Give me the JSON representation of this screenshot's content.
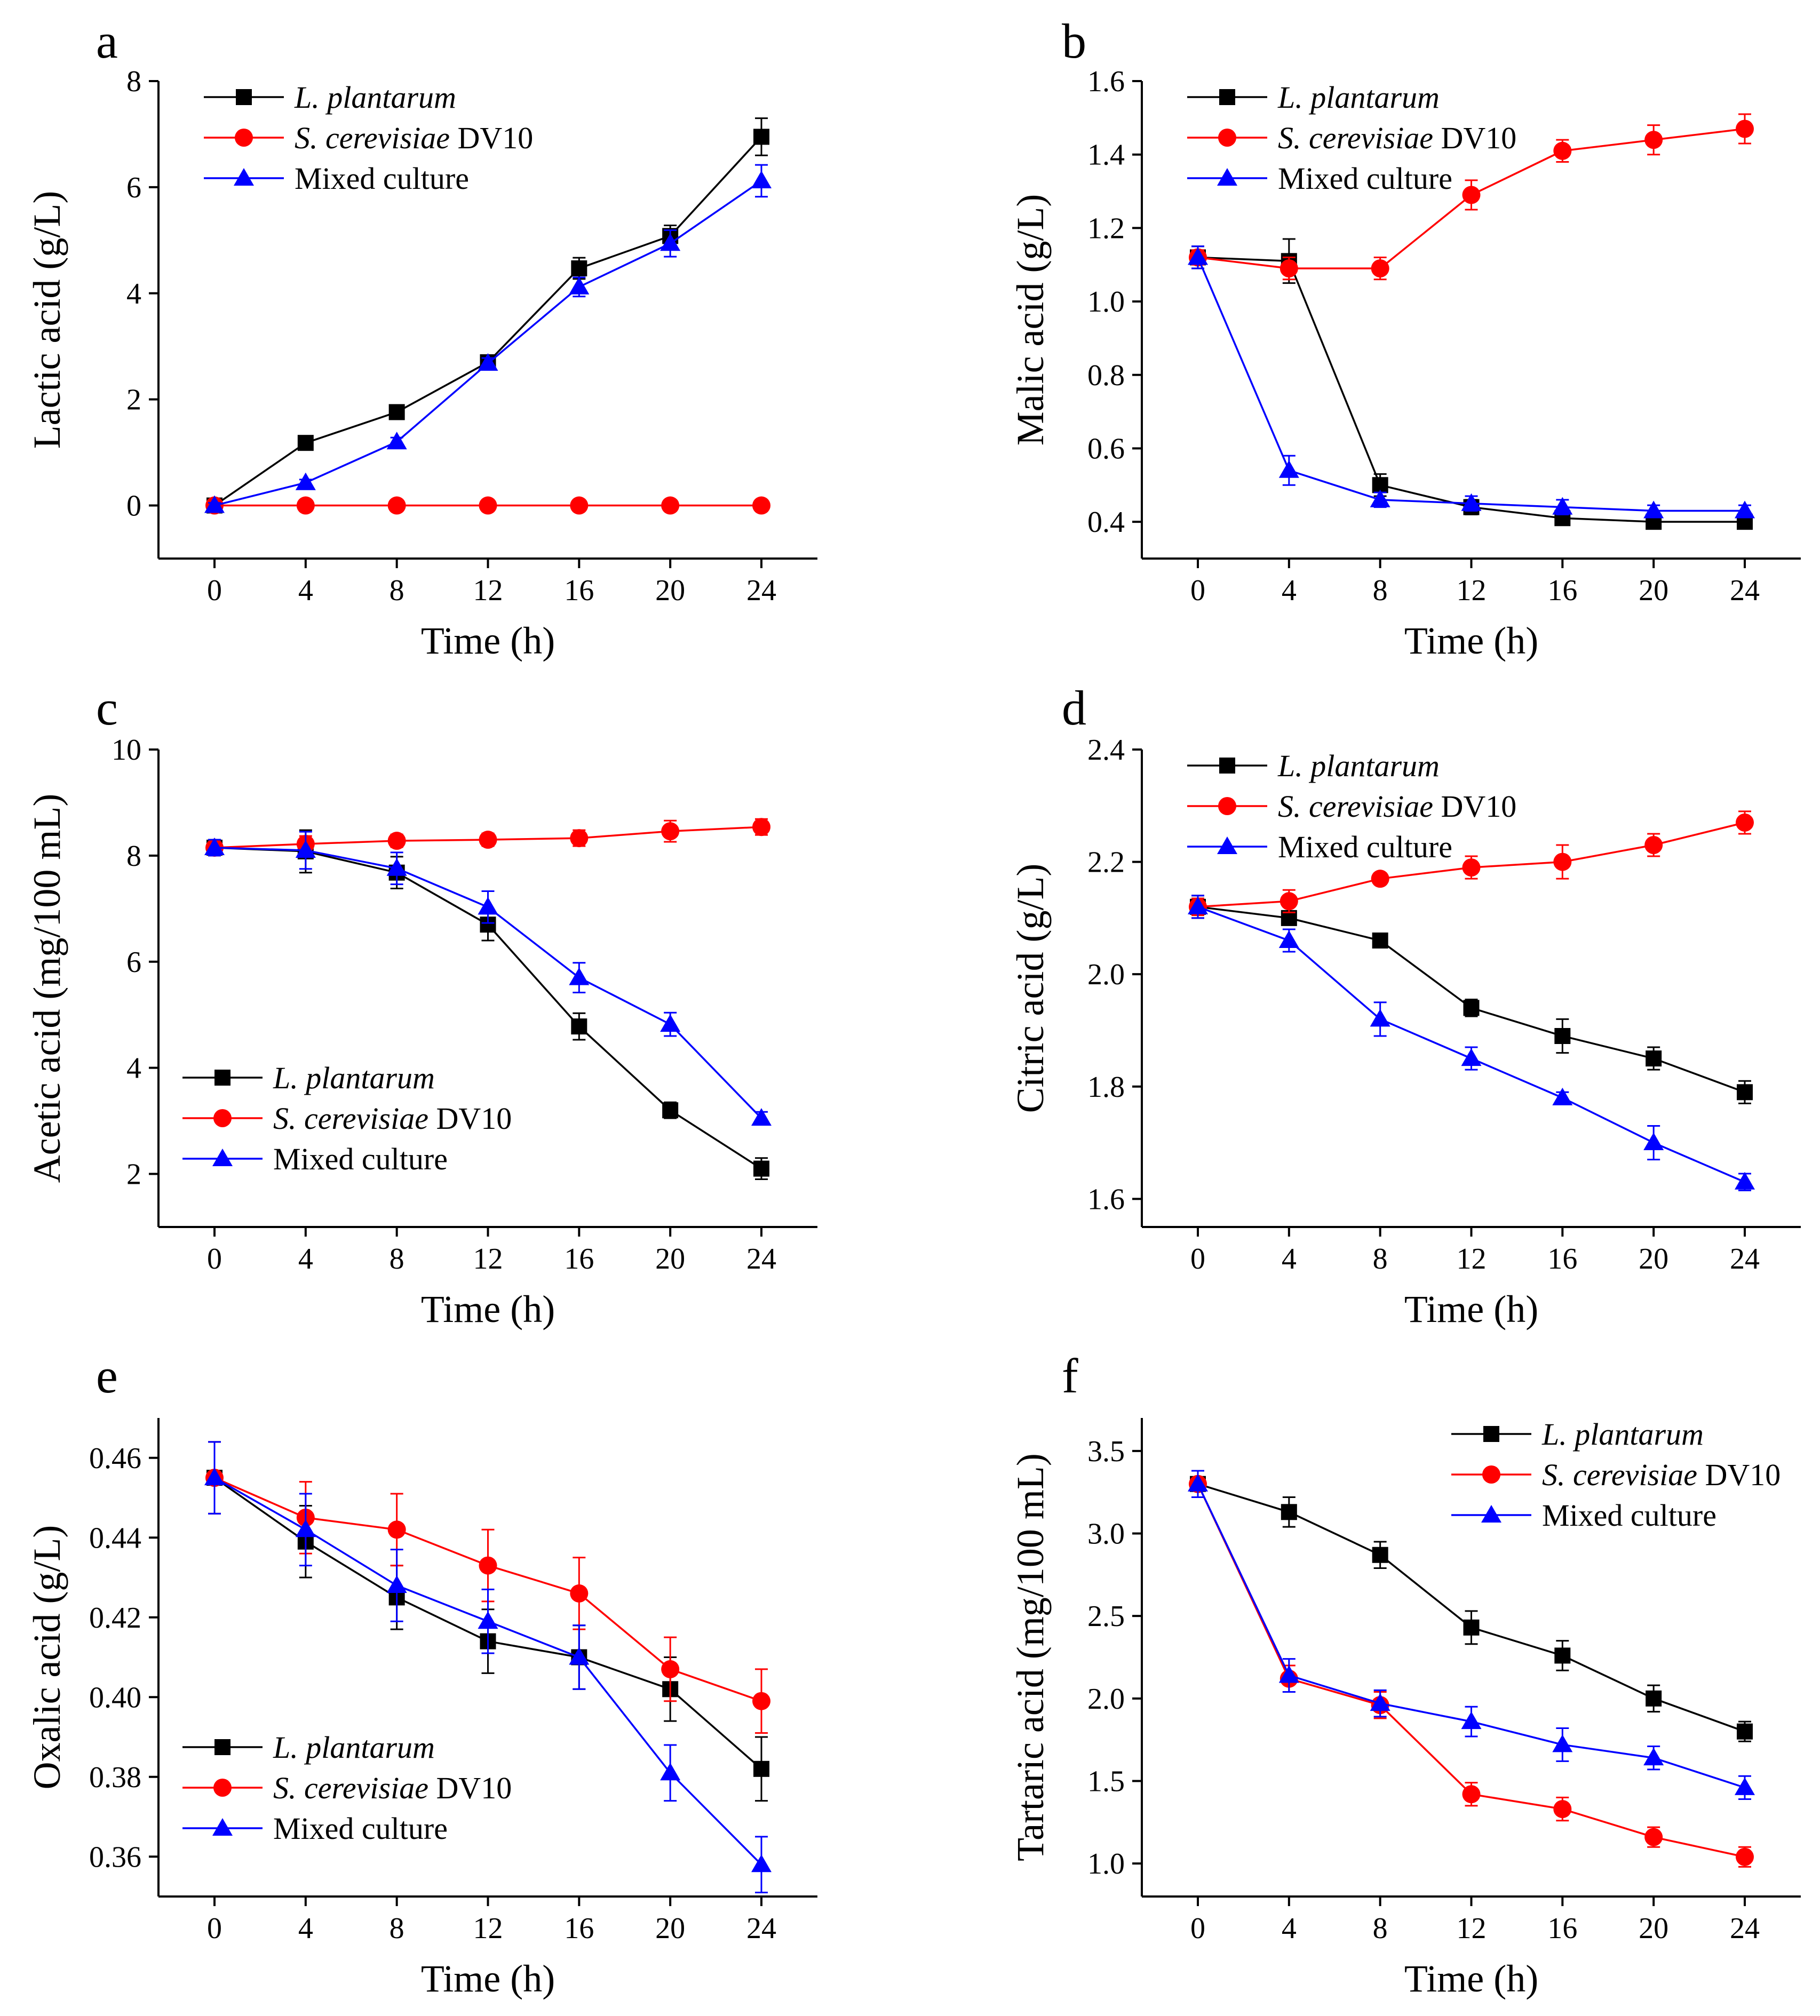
{
  "figure": {
    "x_times": [
      0,
      4,
      8,
      12,
      16,
      20,
      24
    ],
    "xlabel": "Time (h)",
    "series_colors": {
      "lp": "#000000",
      "sc": "#ff0000",
      "mix": "#0000ff"
    }
  },
  "chart_data": [
    {
      "panel": "a",
      "type": "line",
      "ylabel": "Lactic acid (g/L)",
      "ylim": [
        -1,
        8
      ],
      "yticks": [
        0,
        2,
        4,
        6,
        8
      ],
      "ytick_labels": [
        "0",
        "2",
        "4",
        "6",
        "8"
      ],
      "legend_pos": "top-left",
      "series": [
        {
          "key": "lp",
          "name": "L. plantarum",
          "italic": "L. plantarum",
          "suffix": "",
          "marker": "square",
          "values": [
            0,
            1.18,
            1.76,
            2.7,
            4.47,
            5.08,
            6.95
          ],
          "errors": [
            0.05,
            0.06,
            0.07,
            0.1,
            0.2,
            0.2,
            0.35
          ]
        },
        {
          "key": "sc",
          "name": "S. cerevisiae DV10",
          "italic": "S. cerevisiae",
          "suffix": " DV10",
          "marker": "circle",
          "values": [
            0,
            0,
            0,
            0,
            0,
            0,
            0
          ],
          "errors": [
            0,
            0,
            0,
            0,
            0,
            0,
            0
          ]
        },
        {
          "key": "mix",
          "name": "Mixed culture",
          "italic": "",
          "suffix": "Mixed culture",
          "marker": "triangle",
          "values": [
            0,
            0.43,
            1.2,
            2.68,
            4.12,
            4.94,
            6.12
          ],
          "errors": [
            0.05,
            0.06,
            0.08,
            0.1,
            0.18,
            0.25,
            0.3
          ]
        }
      ]
    },
    {
      "panel": "b",
      "type": "line",
      "ylabel": "Malic acid (g/L)",
      "ylim": [
        0.3,
        1.6
      ],
      "yticks": [
        0.4,
        0.6,
        0.8,
        1.0,
        1.2,
        1.4,
        1.6
      ],
      "ytick_labels": [
        "0.4",
        "0.6",
        "0.8",
        "1.0",
        "1.2",
        "1.4",
        "1.6"
      ],
      "legend_pos": "top-left",
      "series": [
        {
          "key": "lp",
          "name": "L. plantarum",
          "italic": "L. plantarum",
          "suffix": "",
          "marker": "square",
          "values": [
            1.12,
            1.11,
            0.5,
            0.44,
            0.41,
            0.4,
            0.4
          ],
          "errors": [
            0.03,
            0.06,
            0.03,
            0.02,
            0.015,
            0.015,
            0.015
          ]
        },
        {
          "key": "sc",
          "name": "S. cerevisiae DV10",
          "italic": "S. cerevisiae",
          "suffix": " DV10",
          "marker": "circle",
          "values": [
            1.12,
            1.09,
            1.09,
            1.29,
            1.41,
            1.44,
            1.47
          ],
          "errors": [
            0.02,
            0.03,
            0.03,
            0.04,
            0.03,
            0.04,
            0.04
          ]
        },
        {
          "key": "mix",
          "name": "Mixed culture",
          "italic": "",
          "suffix": "Mixed culture",
          "marker": "triangle",
          "values": [
            1.12,
            0.54,
            0.46,
            0.45,
            0.44,
            0.43,
            0.43
          ],
          "errors": [
            0.03,
            0.04,
            0.02,
            0.02,
            0.02,
            0.015,
            0.015
          ]
        }
      ]
    },
    {
      "panel": "c",
      "type": "line",
      "ylabel": "Acetic acid (mg/100 mL)",
      "ylim": [
        1,
        10
      ],
      "yticks": [
        2,
        4,
        6,
        8,
        10
      ],
      "ytick_labels": [
        "2",
        "4",
        "6",
        "8",
        "10"
      ],
      "legend_pos": "bottom-left",
      "series": [
        {
          "key": "lp",
          "name": "L. plantarum",
          "italic": "L. plantarum",
          "suffix": "",
          "marker": "square",
          "values": [
            8.15,
            8.08,
            7.68,
            6.7,
            4.78,
            3.2,
            2.1
          ],
          "errors": [
            0.15,
            0.4,
            0.3,
            0.3,
            0.25,
            0.15,
            0.2
          ]
        },
        {
          "key": "sc",
          "name": "S. cerevisiae DV10",
          "italic": "S. cerevisiae",
          "suffix": " DV10",
          "marker": "circle",
          "values": [
            8.15,
            8.22,
            8.28,
            8.3,
            8.33,
            8.46,
            8.54
          ],
          "errors": [
            0.15,
            0.15,
            0.12,
            0.12,
            0.15,
            0.2,
            0.15
          ]
        },
        {
          "key": "mix",
          "name": "Mixed culture",
          "italic": "",
          "suffix": "Mixed culture",
          "marker": "triangle",
          "values": [
            8.15,
            8.1,
            7.76,
            7.03,
            5.7,
            4.82,
            3.05
          ],
          "errors": [
            0.15,
            0.35,
            0.3,
            0.3,
            0.28,
            0.22,
            0.12
          ]
        }
      ]
    },
    {
      "panel": "d",
      "type": "line",
      "ylabel": "Citric acid (g/L)",
      "ylim": [
        1.55,
        2.4
      ],
      "yticks": [
        1.6,
        1.8,
        2.0,
        2.2,
        2.4
      ],
      "ytick_labels": [
        "1.6",
        "1.8",
        "2.0",
        "2.2",
        "2.4"
      ],
      "legend_pos": "top-left",
      "series": [
        {
          "key": "lp",
          "name": "L. plantarum",
          "italic": "L. plantarum",
          "suffix": "",
          "marker": "square",
          "values": [
            2.12,
            2.1,
            2.06,
            1.94,
            1.89,
            1.85,
            1.79
          ],
          "errors": [
            0.02,
            0.01,
            0.01,
            0.015,
            0.03,
            0.02,
            0.02
          ]
        },
        {
          "key": "sc",
          "name": "S. cerevisiae DV10",
          "italic": "S. cerevisiae",
          "suffix": " DV10",
          "marker": "circle",
          "values": [
            2.12,
            2.13,
            2.17,
            2.19,
            2.2,
            2.23,
            2.27
          ],
          "errors": [
            0.015,
            0.02,
            0.01,
            0.02,
            0.03,
            0.02,
            0.02
          ]
        },
        {
          "key": "mix",
          "name": "Mixed culture",
          "italic": "",
          "suffix": "Mixed culture",
          "marker": "triangle",
          "values": [
            2.12,
            2.06,
            1.92,
            1.85,
            1.78,
            1.7,
            1.63
          ],
          "errors": [
            0.02,
            0.02,
            0.03,
            0.02,
            0.01,
            0.03,
            0.015
          ]
        }
      ]
    },
    {
      "panel": "e",
      "type": "line",
      "ylabel": "Oxalic acid (g/L)",
      "ylim": [
        0.35,
        0.47
      ],
      "yticks": [
        0.36,
        0.38,
        0.4,
        0.42,
        0.44,
        0.46
      ],
      "ytick_labels": [
        "0.36",
        "0.38",
        "0.40",
        "0.42",
        "0.44",
        "0.46"
      ],
      "legend_pos": "bottom-left",
      "series": [
        {
          "key": "lp",
          "name": "L. plantarum",
          "italic": "L. plantarum",
          "suffix": "",
          "marker": "square",
          "values": [
            0.455,
            0.439,
            0.425,
            0.414,
            0.41,
            0.402,
            0.382
          ],
          "errors": [
            0.009,
            0.009,
            0.008,
            0.008,
            0.008,
            0.008,
            0.008
          ]
        },
        {
          "key": "sc",
          "name": "S. cerevisiae DV10",
          "italic": "S. cerevisiae",
          "suffix": " DV10",
          "marker": "circle",
          "values": [
            0.455,
            0.445,
            0.442,
            0.433,
            0.426,
            0.407,
            0.399
          ],
          "errors": [
            0.009,
            0.009,
            0.009,
            0.009,
            0.009,
            0.008,
            0.008
          ]
        },
        {
          "key": "mix",
          "name": "Mixed culture",
          "italic": "",
          "suffix": "Mixed culture",
          "marker": "triangle",
          "values": [
            0.455,
            0.442,
            0.428,
            0.419,
            0.41,
            0.381,
            0.358
          ],
          "errors": [
            0.009,
            0.009,
            0.009,
            0.008,
            0.008,
            0.007,
            0.007
          ]
        }
      ]
    },
    {
      "panel": "f",
      "type": "line",
      "ylabel": "Tartaric acid (mg/100 mL)",
      "ylim": [
        0.8,
        3.7
      ],
      "yticks": [
        1.0,
        1.5,
        2.0,
        2.5,
        3.0,
        3.5
      ],
      "ytick_labels": [
        "1.0",
        "1.5",
        "2.0",
        "2.5",
        "3.0",
        "3.5"
      ],
      "legend_pos": "top-right",
      "series": [
        {
          "key": "lp",
          "name": "L. plantarum",
          "italic": "L. plantarum",
          "suffix": "",
          "marker": "square",
          "values": [
            3.3,
            3.13,
            2.87,
            2.43,
            2.26,
            2.0,
            1.8
          ],
          "errors": [
            0.08,
            0.09,
            0.08,
            0.1,
            0.09,
            0.08,
            0.06
          ]
        },
        {
          "key": "sc",
          "name": "S. cerevisiae DV10",
          "italic": "S. cerevisiae",
          "suffix": " DV10",
          "marker": "circle",
          "values": [
            3.3,
            2.12,
            1.96,
            1.42,
            1.33,
            1.16,
            1.04
          ],
          "errors": [
            0.08,
            0.08,
            0.08,
            0.07,
            0.07,
            0.06,
            0.06
          ]
        },
        {
          "key": "mix",
          "name": "Mixed culture",
          "italic": "",
          "suffix": "Mixed culture",
          "marker": "triangle",
          "values": [
            3.3,
            2.14,
            1.97,
            1.86,
            1.72,
            1.64,
            1.46
          ],
          "errors": [
            0.08,
            0.1,
            0.08,
            0.09,
            0.1,
            0.07,
            0.07
          ]
        }
      ]
    }
  ]
}
